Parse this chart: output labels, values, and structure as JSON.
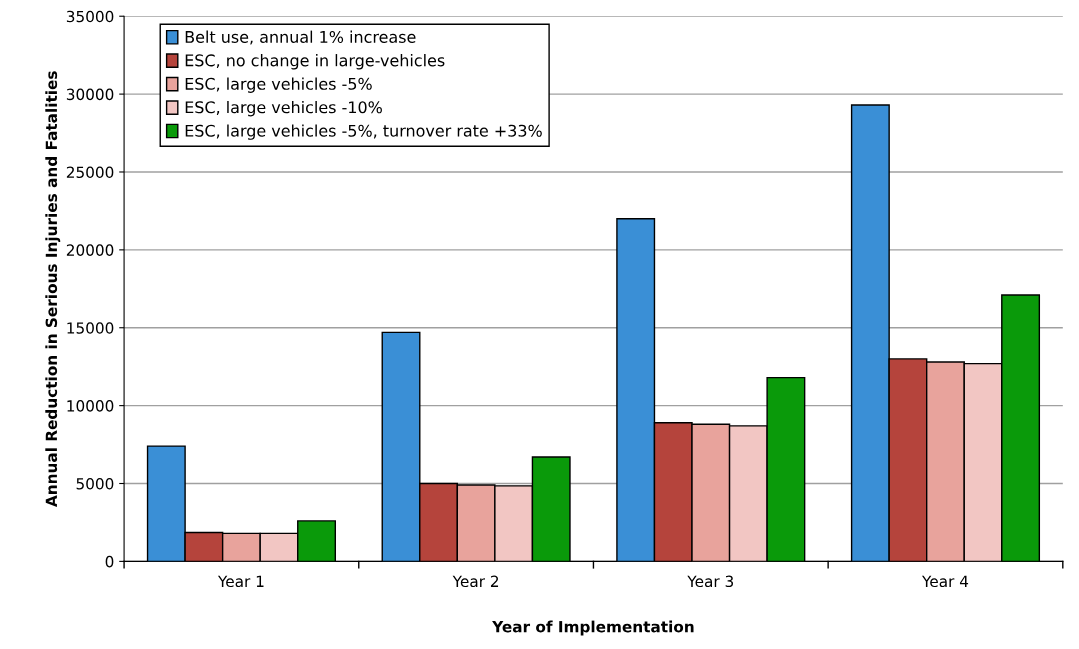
{
  "chart_data": {
    "type": "bar",
    "xlabel": "Year of Implementation",
    "ylabel": "Annual Reduction in Serious Injuries and Fatalities",
    "categories": [
      "Year 1",
      "Year 2",
      "Year 3",
      "Year 4"
    ],
    "series": [
      {
        "name": "Belt use, annual 1% increase",
        "color": "#3a8fd6",
        "values": [
          7400,
          14700,
          22000,
          29300
        ]
      },
      {
        "name": "ESC, no change in large-vehicles",
        "color": "#b5443c",
        "values": [
          1850,
          5000,
          8900,
          13000
        ]
      },
      {
        "name": "ESC, large vehicles -5%",
        "color": "#e8a39c",
        "values": [
          1800,
          4900,
          8800,
          12800
        ]
      },
      {
        "name": "ESC, large vehicles -10%",
        "color": "#f2c6c3",
        "values": [
          1800,
          4850,
          8700,
          12700
        ]
      },
      {
        "name": "ESC, large vehicles -5%, turnover rate +33%",
        "color": "#0a9a0a",
        "values": [
          2600,
          6700,
          11800,
          17100
        ]
      }
    ],
    "ylim": [
      0,
      35000
    ],
    "yticks": [
      0,
      5000,
      10000,
      15000,
      20000,
      25000,
      30000,
      35000
    ],
    "grid": "y",
    "legend": "top left"
  }
}
